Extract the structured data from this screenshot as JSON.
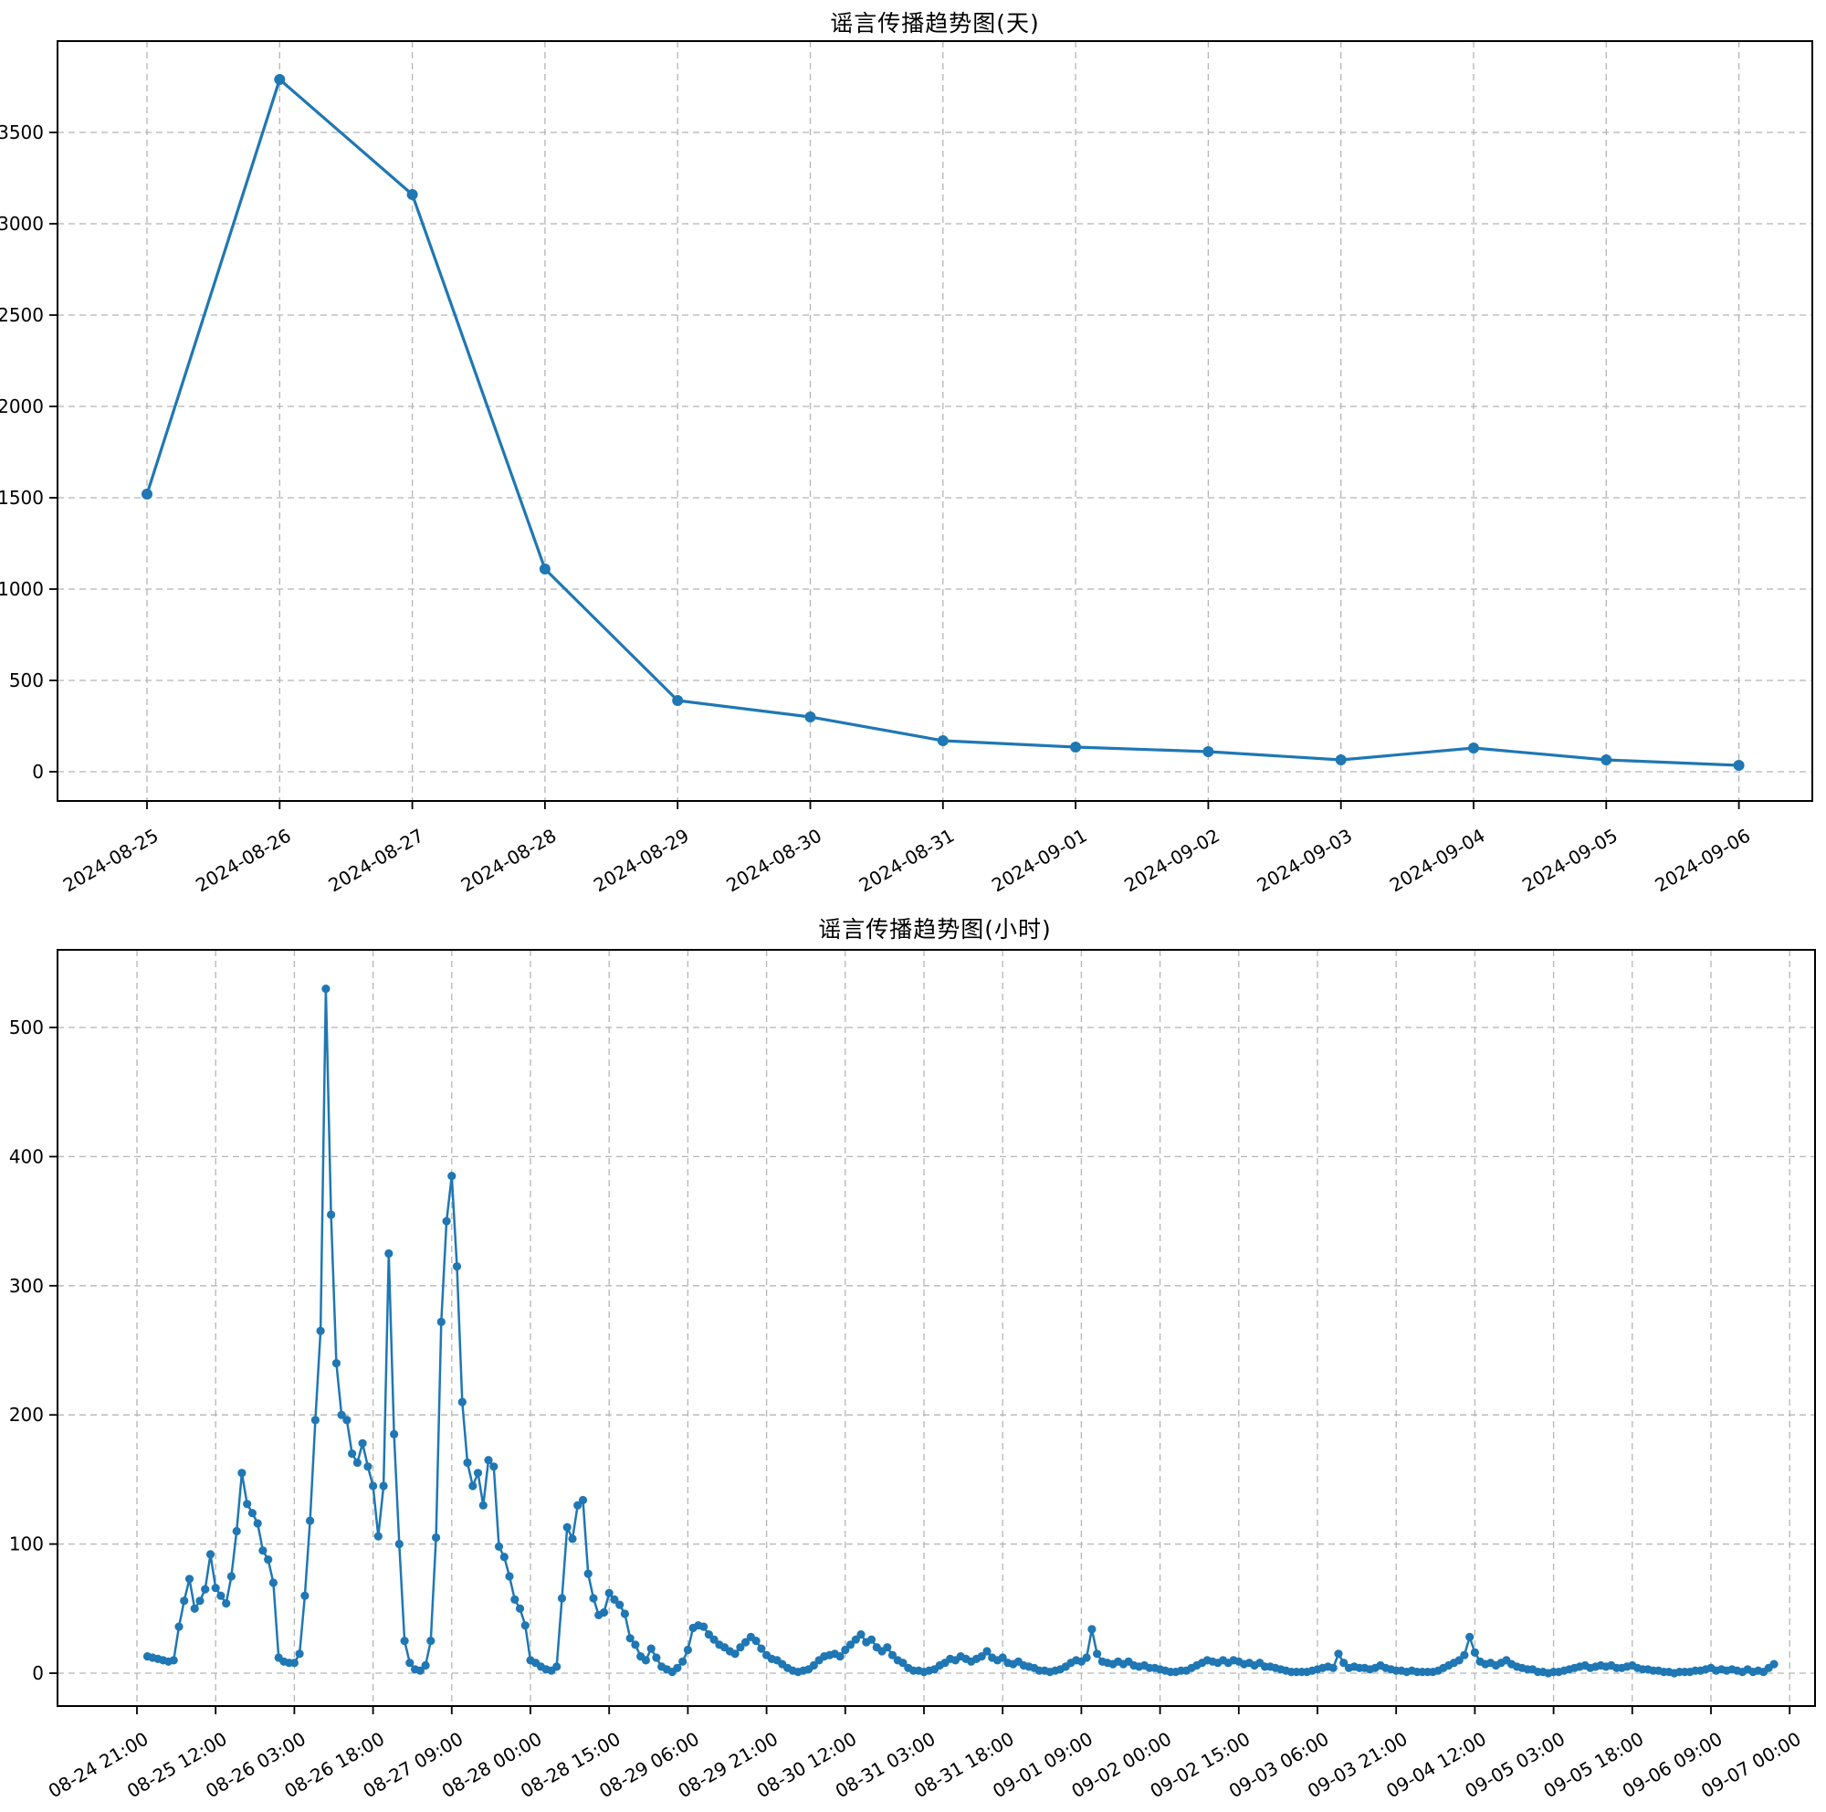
{
  "page": {
    "background": "#ffffff",
    "accent_color": "#1f77b4"
  },
  "chart_data": [
    {
      "id": "daily",
      "type": "line",
      "title": "谣言传播趋势图(天)",
      "xlabel": "",
      "ylabel": "",
      "line_color": "#1f77b4",
      "marker": "circle",
      "grid": true,
      "ylim": [
        -160,
        4000
      ],
      "y_ticks": [
        0,
        500,
        1000,
        1500,
        2000,
        2500,
        3000,
        3500
      ],
      "categories": [
        "2024-08-25",
        "2024-08-26",
        "2024-08-27",
        "2024-08-28",
        "2024-08-29",
        "2024-08-30",
        "2024-08-31",
        "2024-09-01",
        "2024-09-02",
        "2024-09-03",
        "2024-09-04",
        "2024-09-05",
        "2024-09-06"
      ],
      "values": [
        1520,
        3790,
        3160,
        1110,
        390,
        300,
        170,
        135,
        110,
        65,
        130,
        65,
        35
      ]
    },
    {
      "id": "hourly",
      "type": "line",
      "title": "谣言传播趋势图(小时)",
      "xlabel": "",
      "ylabel": "",
      "line_color": "#1f77b4",
      "marker": "circle",
      "grid": true,
      "ylim": [
        -26,
        560
      ],
      "y_ticks": [
        0,
        100,
        200,
        300,
        400,
        500
      ],
      "x_tick_labels": [
        "08-24 21:00",
        "08-25 12:00",
        "08-26 03:00",
        "08-26 18:00",
        "08-27 09:00",
        "08-28 00:00",
        "08-28 15:00",
        "08-29 06:00",
        "08-29 21:00",
        "08-30 12:00",
        "08-31 03:00",
        "08-31 18:00",
        "09-01 09:00",
        "09-02 00:00",
        "09-02 15:00",
        "09-03 06:00",
        "09-03 21:00",
        "09-04 12:00",
        "09-05 03:00",
        "09-05 18:00",
        "09-06 09:00",
        "09-07 00:00"
      ],
      "x_tick_interval_hours": 15,
      "series_start": "08-24 23:00",
      "series_interval_hours": 1,
      "values": [
        13,
        12,
        11,
        10,
        9,
        10,
        36,
        56,
        73,
        50,
        56,
        65,
        92,
        66,
        60,
        54,
        75,
        110,
        155,
        131,
        124,
        116,
        95,
        88,
        70,
        12,
        9,
        8,
        8,
        15,
        60,
        118,
        196,
        265,
        530,
        355,
        240,
        200,
        196,
        170,
        163,
        178,
        160,
        145,
        106,
        145,
        325,
        185,
        100,
        25,
        8,
        3,
        2,
        6,
        25,
        105,
        272,
        350,
        385,
        315,
        210,
        163,
        145,
        155,
        130,
        165,
        160,
        98,
        90,
        75,
        57,
        50,
        37,
        10,
        8,
        5,
        3,
        2,
        5,
        58,
        113,
        104,
        130,
        134,
        77,
        58,
        45,
        47,
        62,
        57,
        53,
        46,
        27,
        22,
        13,
        10,
        19,
        12,
        5,
        3,
        1,
        4,
        9,
        18,
        35,
        37,
        36,
        30,
        26,
        22,
        20,
        17,
        15,
        20,
        24,
        28,
        25,
        19,
        14,
        11,
        10,
        7,
        4,
        2,
        1,
        2,
        3,
        6,
        10,
        13,
        14,
        15,
        13,
        18,
        22,
        26,
        30,
        24,
        26,
        20,
        17,
        20,
        14,
        10,
        8,
        4,
        2,
        2,
        1,
        2,
        3,
        6,
        8,
        11,
        10,
        13,
        11,
        9,
        11,
        13,
        17,
        12,
        10,
        12,
        8,
        7,
        9,
        6,
        5,
        4,
        2,
        2,
        1,
        2,
        3,
        5,
        8,
        10,
        9,
        12,
        34,
        15,
        9,
        8,
        7,
        9,
        7,
        9,
        6,
        5,
        6,
        4,
        4,
        3,
        2,
        1,
        1,
        2,
        2,
        4,
        6,
        8,
        10,
        9,
        8,
        10,
        8,
        10,
        9,
        7,
        8,
        6,
        8,
        5,
        5,
        4,
        3,
        2,
        1,
        1,
        1,
        1,
        2,
        3,
        4,
        5,
        4,
        15,
        8,
        4,
        5,
        4,
        4,
        3,
        4,
        6,
        4,
        3,
        2,
        2,
        1,
        2,
        1,
        1,
        1,
        1,
        2,
        4,
        6,
        8,
        10,
        14,
        28,
        16,
        9,
        7,
        8,
        6,
        8,
        10,
        7,
        5,
        4,
        3,
        3,
        1,
        1,
        0,
        1,
        1,
        2,
        3,
        4,
        5,
        6,
        4,
        5,
        6,
        5,
        6,
        4,
        4,
        5,
        6,
        4,
        3,
        3,
        2,
        2,
        1,
        1,
        0,
        1,
        1,
        1,
        2,
        2,
        3,
        4,
        2,
        3,
        2,
        3,
        2,
        1,
        3,
        1,
        2,
        1,
        4,
        7
      ]
    }
  ]
}
